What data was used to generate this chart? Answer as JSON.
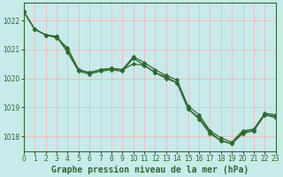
{
  "title": "Graphe pression niveau de la mer (hPa)",
  "background_color": "#c8eaea",
  "line_color": "#2d6a2d",
  "grid_color_v": "#f0b8b8",
  "grid_color_h": "#f0b8b8",
  "series1": [
    0,
    1022.3,
    1,
    1021.7,
    2,
    1021.5,
    3,
    1021.45,
    4,
    1020.9,
    5,
    1020.25,
    6,
    1020.15,
    7,
    1020.25,
    8,
    1020.3,
    9,
    1020.25,
    10,
    1020.7,
    11,
    1020.45,
    12,
    1020.2,
    13,
    1020.05,
    14,
    1019.85,
    15,
    1018.95,
    16,
    1018.65,
    17,
    1018.15,
    18,
    1017.85,
    19,
    1017.75,
    20,
    1018.15,
    21,
    1018.2,
    22,
    1018.75,
    23,
    1018.7
  ],
  "series2": [
    0,
    1022.3,
    1,
    1021.7,
    2,
    1021.5,
    3,
    1021.45,
    4,
    1021.0,
    5,
    1020.3,
    6,
    1020.2,
    7,
    1020.3,
    8,
    1020.35,
    9,
    1020.3,
    10,
    1020.75,
    11,
    1020.55,
    12,
    1020.3,
    13,
    1020.1,
    14,
    1019.95,
    15,
    1019.05,
    16,
    1018.75,
    17,
    1018.2,
    18,
    1017.95,
    19,
    1017.8,
    20,
    1018.2,
    21,
    1018.25,
    22,
    1018.8,
    23,
    1018.75
  ],
  "series3": [
    0,
    1022.3,
    1,
    1021.7,
    2,
    1021.5,
    3,
    1021.4,
    4,
    1021.05,
    5,
    1020.3,
    6,
    1020.2,
    7,
    1020.3,
    8,
    1020.35,
    9,
    1020.3,
    10,
    1020.5,
    11,
    1020.45,
    12,
    1020.2,
    13,
    1020.0,
    14,
    1019.85,
    15,
    1018.95,
    16,
    1018.6,
    17,
    1018.1,
    18,
    1017.85,
    19,
    1017.75,
    20,
    1018.1,
    21,
    1018.2,
    22,
    1018.75,
    23,
    1018.65
  ],
  "xlim": [
    0,
    23
  ],
  "ylim": [
    1017.5,
    1022.6
  ],
  "yticks": [
    1018,
    1019,
    1020,
    1021,
    1022
  ],
  "xticks": [
    0,
    1,
    2,
    3,
    4,
    5,
    6,
    7,
    8,
    9,
    10,
    11,
    12,
    13,
    14,
    15,
    16,
    17,
    18,
    19,
    20,
    21,
    22,
    23
  ],
  "marker_size": 2.5,
  "line_width": 0.9,
  "title_fontsize": 7,
  "tick_fontsize": 5.5
}
